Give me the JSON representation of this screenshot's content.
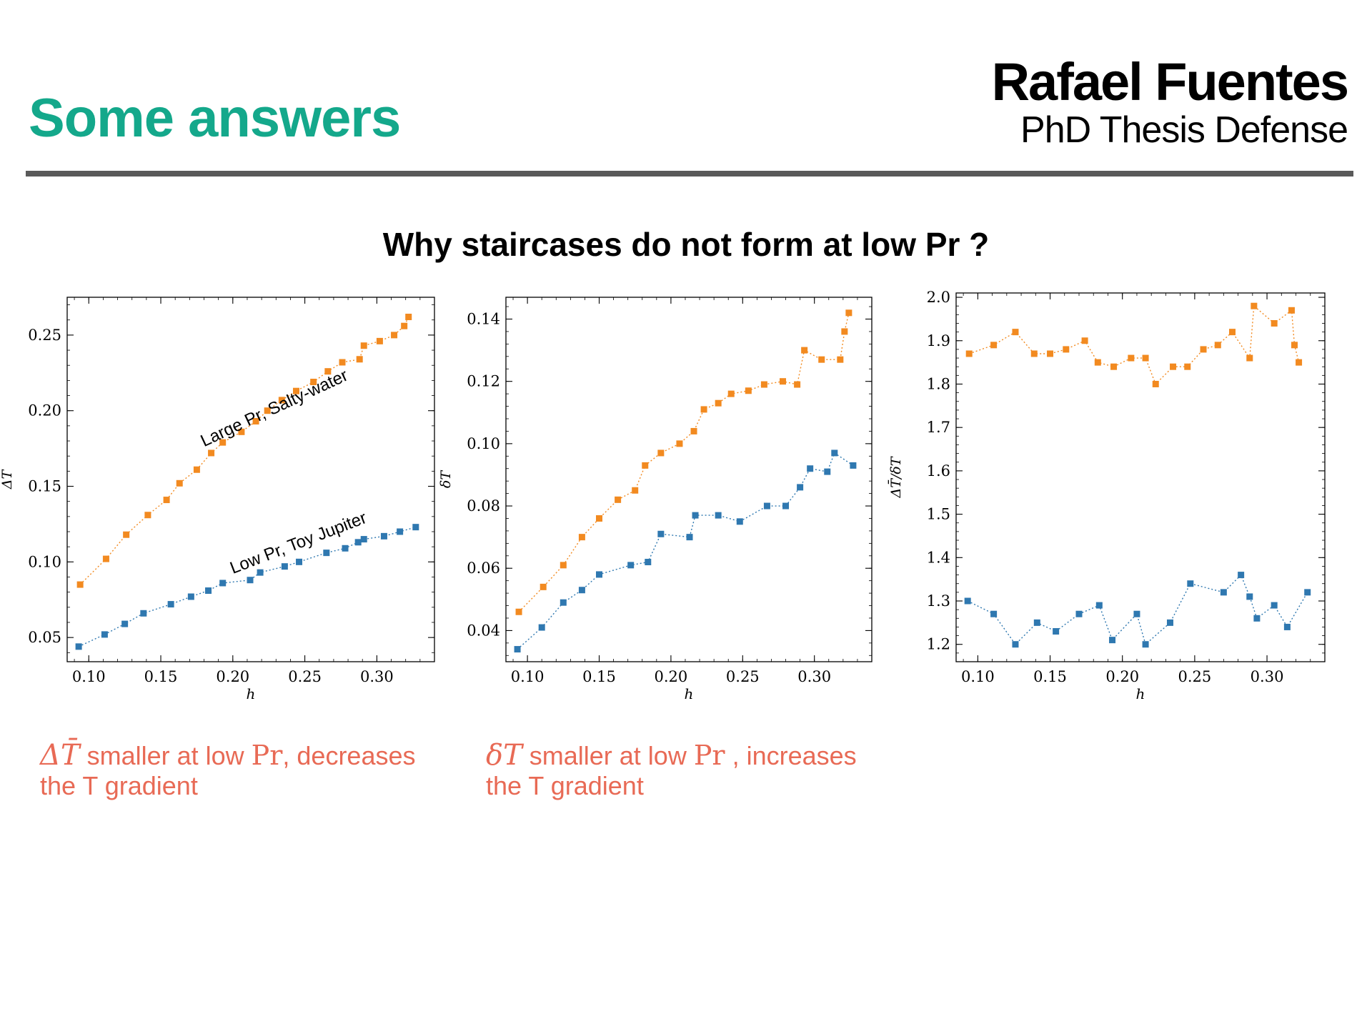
{
  "header": {
    "title": "Some answers",
    "presenter_name": "Rafael Fuentes",
    "presenter_subtitle": "PhD Thesis Defense"
  },
  "question": "Why staircases do not form at low Pr ?",
  "colors": {
    "title": "#14a88b",
    "orange": "#f28a20",
    "blue": "#2f78b0",
    "note": "#e86a55"
  },
  "notes": [
    {
      "symbol": "ΔT̄",
      "text_before": " smaller at low ",
      "pr": "Pr",
      "text_after": ", decreases",
      "line2": "the T gradient"
    },
    {
      "symbol": "δT",
      "text_before": " smaller at low ",
      "pr": "Pr",
      "text_after": " , increases",
      "line2": "the T gradient"
    }
  ],
  "chart_data": [
    {
      "type": "line",
      "xlabel": "h",
      "ylabel": "ΔT̄",
      "xlim": [
        0.085,
        0.34
      ],
      "ylim": [
        0.034,
        0.275
      ],
      "xticks": [
        0.1,
        0.15,
        0.2,
        0.25,
        0.3
      ],
      "yticks": [
        0.05,
        0.1,
        0.15,
        0.2,
        0.25
      ],
      "xtick_labels": [
        "0.10",
        "0.15",
        "0.20",
        "0.25",
        "0.30"
      ],
      "ytick_labels": [
        "0.05",
        "0.10",
        "0.15",
        "0.20",
        "0.25"
      ],
      "grid": false,
      "annotations": [
        {
          "text": "Large Pr, Salty-water",
          "x": 0.18,
          "y": 0.176,
          "angle": -25
        },
        {
          "text": "Low Pr, Toy Jupiter",
          "x": 0.2,
          "y": 0.092,
          "angle": -21
        }
      ],
      "series": [
        {
          "color": "#f28a20",
          "x": [
            0.094,
            0.112,
            0.126,
            0.141,
            0.154,
            0.163,
            0.175,
            0.185,
            0.193,
            0.206,
            0.216,
            0.224,
            0.234,
            0.244,
            0.256,
            0.266,
            0.276,
            0.288,
            0.291,
            0.302,
            0.312,
            0.319,
            0.322
          ],
          "y": [
            0.085,
            0.102,
            0.118,
            0.131,
            0.141,
            0.152,
            0.161,
            0.172,
            0.179,
            0.186,
            0.193,
            0.2,
            0.207,
            0.213,
            0.219,
            0.226,
            0.232,
            0.234,
            0.243,
            0.246,
            0.25,
            0.256,
            0.262
          ]
        },
        {
          "color": "#2f78b0",
          "x": [
            0.093,
            0.111,
            0.125,
            0.138,
            0.157,
            0.171,
            0.183,
            0.193,
            0.212,
            0.219,
            0.236,
            0.246,
            0.265,
            0.278,
            0.287,
            0.291,
            0.305,
            0.316,
            0.327
          ],
          "y": [
            0.044,
            0.052,
            0.059,
            0.066,
            0.072,
            0.077,
            0.081,
            0.086,
            0.088,
            0.093,
            0.097,
            0.1,
            0.106,
            0.109,
            0.113,
            0.115,
            0.117,
            0.12,
            0.123
          ]
        }
      ]
    },
    {
      "type": "line",
      "xlabel": "h",
      "ylabel": "δT",
      "xlim": [
        0.085,
        0.34
      ],
      "ylim": [
        0.03,
        0.147
      ],
      "xticks": [
        0.1,
        0.15,
        0.2,
        0.25,
        0.3
      ],
      "yticks": [
        0.04,
        0.06,
        0.08,
        0.1,
        0.12,
        0.14
      ],
      "xtick_labels": [
        "0.10",
        "0.15",
        "0.20",
        "0.25",
        "0.30"
      ],
      "ytick_labels": [
        "0.04",
        "0.06",
        "0.08",
        "0.10",
        "0.12",
        "0.14"
      ],
      "grid": false,
      "series": [
        {
          "color": "#f28a20",
          "x": [
            0.094,
            0.111,
            0.125,
            0.138,
            0.15,
            0.163,
            0.175,
            0.182,
            0.193,
            0.206,
            0.216,
            0.223,
            0.233,
            0.242,
            0.254,
            0.265,
            0.278,
            0.288,
            0.293,
            0.305,
            0.318,
            0.321,
            0.324
          ],
          "y": [
            0.046,
            0.054,
            0.061,
            0.07,
            0.076,
            0.082,
            0.085,
            0.093,
            0.097,
            0.1,
            0.104,
            0.111,
            0.113,
            0.116,
            0.117,
            0.119,
            0.12,
            0.119,
            0.13,
            0.127,
            0.127,
            0.136,
            0.142
          ]
        },
        {
          "color": "#2f78b0",
          "x": [
            0.093,
            0.11,
            0.125,
            0.138,
            0.15,
            0.172,
            0.184,
            0.193,
            0.213,
            0.217,
            0.233,
            0.248,
            0.267,
            0.28,
            0.29,
            0.297,
            0.309,
            0.314,
            0.327
          ],
          "y": [
            0.034,
            0.041,
            0.049,
            0.053,
            0.058,
            0.061,
            0.062,
            0.071,
            0.07,
            0.077,
            0.077,
            0.075,
            0.08,
            0.08,
            0.086,
            0.092,
            0.091,
            0.097,
            0.093
          ]
        }
      ]
    },
    {
      "type": "line",
      "xlabel": "h",
      "ylabel": "ΔT̄/δT",
      "xlim": [
        0.085,
        0.34
      ],
      "ylim": [
        1.16,
        2.01
      ],
      "xticks": [
        0.1,
        0.15,
        0.2,
        0.25,
        0.3
      ],
      "yticks": [
        1.2,
        1.3,
        1.4,
        1.5,
        1.6,
        1.7,
        1.8,
        1.9,
        2.0
      ],
      "xtick_labels": [
        "0.10",
        "0.15",
        "0.20",
        "0.25",
        "0.30"
      ],
      "ytick_labels": [
        "1.2",
        "1.3",
        "1.4",
        "1.5",
        "1.6",
        "1.7",
        "1.8",
        "1.9",
        "2.0"
      ],
      "grid": false,
      "series": [
        {
          "color": "#f28a20",
          "x": [
            0.094,
            0.111,
            0.126,
            0.139,
            0.15,
            0.161,
            0.174,
            0.183,
            0.194,
            0.206,
            0.216,
            0.223,
            0.235,
            0.245,
            0.256,
            0.266,
            0.276,
            0.288,
            0.291,
            0.305,
            0.317,
            0.319,
            0.322
          ],
          "y": [
            1.87,
            1.89,
            1.92,
            1.87,
            1.87,
            1.88,
            1.9,
            1.85,
            1.84,
            1.86,
            1.86,
            1.8,
            1.84,
            1.84,
            1.88,
            1.89,
            1.92,
            1.86,
            1.98,
            1.94,
            1.97,
            1.89,
            1.85
          ]
        },
        {
          "color": "#2f78b0",
          "x": [
            0.093,
            0.111,
            0.126,
            0.141,
            0.154,
            0.17,
            0.184,
            0.193,
            0.21,
            0.216,
            0.233,
            0.247,
            0.27,
            0.282,
            0.288,
            0.293,
            0.305,
            0.314,
            0.328
          ],
          "y": [
            1.3,
            1.27,
            1.2,
            1.25,
            1.23,
            1.27,
            1.29,
            1.21,
            1.27,
            1.2,
            1.25,
            1.34,
            1.32,
            1.36,
            1.31,
            1.26,
            1.29,
            1.24,
            1.32
          ]
        }
      ]
    }
  ]
}
